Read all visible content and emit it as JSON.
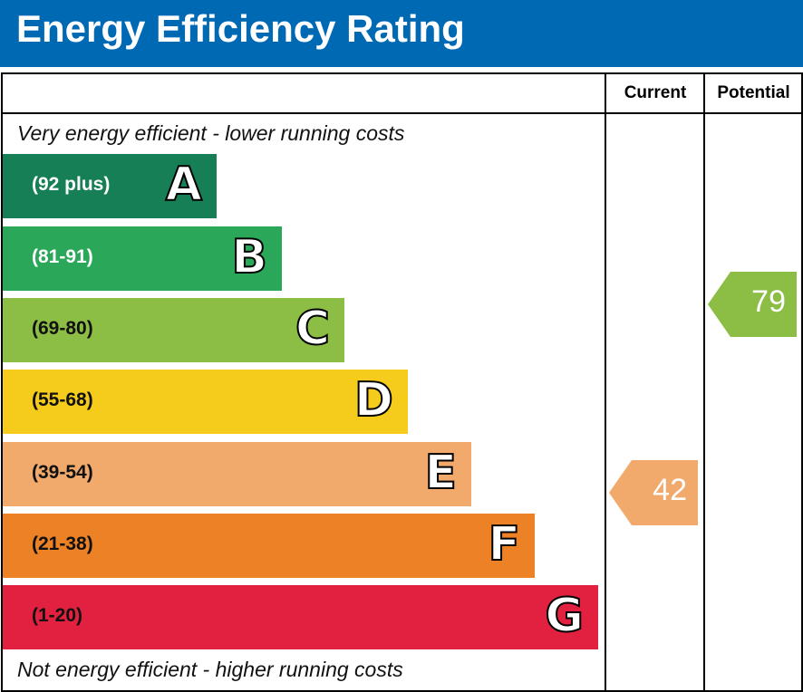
{
  "title": "Energy Efficiency Rating",
  "chart_data": {
    "type": "bar",
    "title": "Energy Efficiency Rating",
    "columns": [
      "Current",
      "Potential"
    ],
    "top_note": "Very energy efficient - lower running costs",
    "bottom_note": "Not energy efficient - higher running costs",
    "bands": [
      {
        "letter": "A",
        "range": "(92 plus)",
        "color": "#177f56",
        "range_color": "#ffffff"
      },
      {
        "letter": "B",
        "range": "(81-91)",
        "color": "#2ba75a",
        "range_color": "#ffffff"
      },
      {
        "letter": "C",
        "range": "(69-80)",
        "color": "#8cbd44",
        "range_color": "#111111"
      },
      {
        "letter": "D",
        "range": "(55-68)",
        "color": "#f5cb1c",
        "range_color": "#111111"
      },
      {
        "letter": "E",
        "range": "(39-54)",
        "color": "#f1a96c",
        "range_color": "#111111"
      },
      {
        "letter": "F",
        "range": "(21-38)",
        "color": "#ed8126",
        "range_color": "#111111"
      },
      {
        "letter": "G",
        "range": "(1-20)",
        "color": "#e2203f",
        "range_color": "#111111"
      }
    ],
    "current": {
      "value": "42",
      "band": "E",
      "color": "#f1a96c"
    },
    "potential": {
      "value": "79",
      "band": "C",
      "color": "#8cbd44"
    }
  }
}
